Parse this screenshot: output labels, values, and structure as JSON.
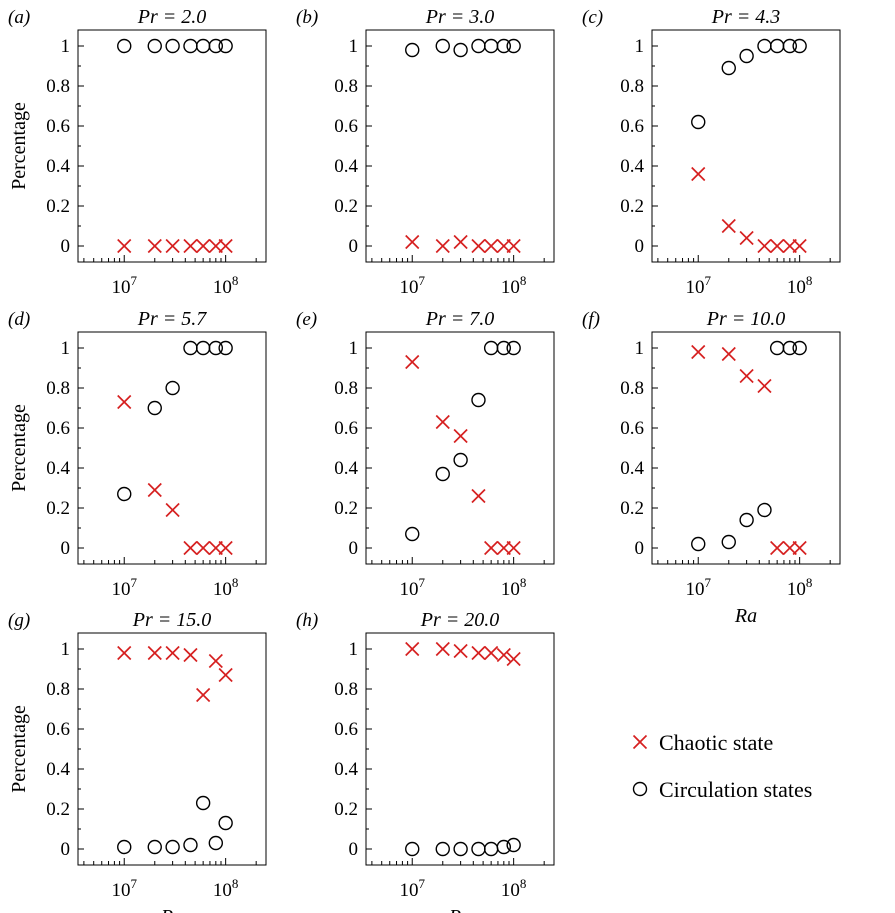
{
  "legend": {
    "entries": [
      {
        "label": "Chaotic state",
        "marker": "x",
        "color": "#d62020"
      },
      {
        "label": "Circulation states",
        "marker": "o",
        "color": "#000000"
      }
    ]
  },
  "chart_data": [
    {
      "type": "scatter",
      "letter": "(a)",
      "title": "Pr = 2.0",
      "ylabel": "Percentage",
      "xlabel": "",
      "xscale": "log",
      "xlim": [
        3500000,
        250000000
      ],
      "ylim": [
        -0.08,
        1.08
      ],
      "yticks": [
        0,
        0.2,
        0.4,
        0.6,
        0.8,
        1
      ],
      "ytick_labels": [
        "0",
        "0.2",
        "0.4",
        "0.6",
        "0.8",
        "1"
      ],
      "xticks": [
        10000000,
        100000000
      ],
      "xtick_labels": [
        "10^7",
        "10^8"
      ],
      "series": [
        {
          "name": "Chaotic state",
          "marker": "x",
          "color": "#d62020",
          "x": [
            10000000,
            20000000,
            30000000,
            45000000,
            60000000,
            80000000,
            100000000
          ],
          "y": [
            0,
            0,
            0,
            0,
            0,
            0,
            0
          ]
        },
        {
          "name": "Circulation states",
          "marker": "o",
          "color": "#000000",
          "x": [
            10000000,
            20000000,
            30000000,
            45000000,
            60000000,
            80000000,
            100000000
          ],
          "y": [
            1,
            1,
            1,
            1,
            1,
            1,
            1
          ]
        }
      ]
    },
    {
      "type": "scatter",
      "letter": "(b)",
      "title": "Pr = 3.0",
      "ylabel": "",
      "xlabel": "",
      "xscale": "log",
      "xlim": [
        3500000,
        250000000
      ],
      "ylim": [
        -0.08,
        1.08
      ],
      "yticks": [
        0,
        0.2,
        0.4,
        0.6,
        0.8,
        1
      ],
      "ytick_labels": [
        "0",
        "0.2",
        "0.4",
        "0.6",
        "0.8",
        "1"
      ],
      "xticks": [
        10000000,
        100000000
      ],
      "xtick_labels": [
        "10^7",
        "10^8"
      ],
      "series": [
        {
          "name": "Chaotic state",
          "marker": "x",
          "color": "#d62020",
          "x": [
            10000000,
            20000000,
            30000000,
            45000000,
            60000000,
            80000000,
            100000000
          ],
          "y": [
            0.02,
            0,
            0.02,
            0,
            0,
            0,
            0
          ]
        },
        {
          "name": "Circulation states",
          "marker": "o",
          "color": "#000000",
          "x": [
            10000000,
            20000000,
            30000000,
            45000000,
            60000000,
            80000000,
            100000000
          ],
          "y": [
            0.98,
            1,
            0.98,
            1,
            1,
            1,
            1
          ]
        }
      ]
    },
    {
      "type": "scatter",
      "letter": "(c)",
      "title": "Pr = 4.3",
      "ylabel": "",
      "xlabel": "",
      "xscale": "log",
      "xlim": [
        3500000,
        250000000
      ],
      "ylim": [
        -0.08,
        1.08
      ],
      "yticks": [
        0,
        0.2,
        0.4,
        0.6,
        0.8,
        1
      ],
      "ytick_labels": [
        "0",
        "0.2",
        "0.4",
        "0.6",
        "0.8",
        "1"
      ],
      "xticks": [
        10000000,
        100000000
      ],
      "xtick_labels": [
        "10^7",
        "10^8"
      ],
      "series": [
        {
          "name": "Chaotic state",
          "marker": "x",
          "color": "#d62020",
          "x": [
            10000000,
            20000000,
            30000000,
            45000000,
            60000000,
            80000000,
            100000000
          ],
          "y": [
            0.36,
            0.1,
            0.04,
            0,
            0,
            0,
            0
          ]
        },
        {
          "name": "Circulation states",
          "marker": "o",
          "color": "#000000",
          "x": [
            10000000,
            20000000,
            30000000,
            45000000,
            60000000,
            80000000,
            100000000
          ],
          "y": [
            0.62,
            0.89,
            0.95,
            1,
            1,
            1,
            1
          ]
        }
      ]
    },
    {
      "type": "scatter",
      "letter": "(d)",
      "title": "Pr = 5.7",
      "ylabel": "Percentage",
      "xlabel": "",
      "xscale": "log",
      "xlim": [
        3500000,
        250000000
      ],
      "ylim": [
        -0.08,
        1.08
      ],
      "yticks": [
        0,
        0.2,
        0.4,
        0.6,
        0.8,
        1
      ],
      "ytick_labels": [
        "0",
        "0.2",
        "0.4",
        "0.6",
        "0.8",
        "1"
      ],
      "xticks": [
        10000000,
        100000000
      ],
      "xtick_labels": [
        "10^7",
        "10^8"
      ],
      "series": [
        {
          "name": "Chaotic state",
          "marker": "x",
          "color": "#d62020",
          "x": [
            10000000,
            20000000,
            30000000,
            45000000,
            60000000,
            80000000,
            100000000
          ],
          "y": [
            0.73,
            0.29,
            0.19,
            0,
            0,
            0,
            0
          ]
        },
        {
          "name": "Circulation states",
          "marker": "o",
          "color": "#000000",
          "x": [
            10000000,
            20000000,
            30000000,
            45000000,
            60000000,
            80000000,
            100000000
          ],
          "y": [
            0.27,
            0.7,
            0.8,
            1,
            1,
            1,
            1
          ]
        }
      ]
    },
    {
      "type": "scatter",
      "letter": "(e)",
      "title": "Pr = 7.0",
      "ylabel": "",
      "xlabel": "",
      "xscale": "log",
      "xlim": [
        3500000,
        250000000
      ],
      "ylim": [
        -0.08,
        1.08
      ],
      "yticks": [
        0,
        0.2,
        0.4,
        0.6,
        0.8,
        1
      ],
      "ytick_labels": [
        "0",
        "0.2",
        "0.4",
        "0.6",
        "0.8",
        "1"
      ],
      "xticks": [
        10000000,
        100000000
      ],
      "xtick_labels": [
        "10^7",
        "10^8"
      ],
      "series": [
        {
          "name": "Chaotic state",
          "marker": "x",
          "color": "#d62020",
          "x": [
            10000000,
            20000000,
            30000000,
            45000000,
            60000000,
            80000000,
            100000000
          ],
          "y": [
            0.93,
            0.63,
            0.56,
            0.26,
            0,
            0,
            0
          ]
        },
        {
          "name": "Circulation states",
          "marker": "o",
          "color": "#000000",
          "x": [
            10000000,
            20000000,
            30000000,
            45000000,
            60000000,
            80000000,
            100000000
          ],
          "y": [
            0.07,
            0.37,
            0.44,
            0.74,
            1,
            1,
            1
          ]
        }
      ]
    },
    {
      "type": "scatter",
      "letter": "(f)",
      "title": "Pr = 10.0",
      "ylabel": "",
      "xlabel": "Ra",
      "xscale": "log",
      "xlim": [
        3500000,
        250000000
      ],
      "ylim": [
        -0.08,
        1.08
      ],
      "yticks": [
        0,
        0.2,
        0.4,
        0.6,
        0.8,
        1
      ],
      "ytick_labels": [
        "0",
        "0.2",
        "0.4",
        "0.6",
        "0.8",
        "1"
      ],
      "xticks": [
        10000000,
        100000000
      ],
      "xtick_labels": [
        "10^7",
        "10^8"
      ],
      "series": [
        {
          "name": "Chaotic state",
          "marker": "x",
          "color": "#d62020",
          "x": [
            10000000,
            20000000,
            30000000,
            45000000,
            60000000,
            80000000,
            100000000
          ],
          "y": [
            0.98,
            0.97,
            0.86,
            0.81,
            0,
            0,
            0
          ]
        },
        {
          "name": "Circulation states",
          "marker": "o",
          "color": "#000000",
          "x": [
            10000000,
            20000000,
            30000000,
            45000000,
            60000000,
            80000000,
            100000000
          ],
          "y": [
            0.02,
            0.03,
            0.14,
            0.19,
            1,
            1,
            1
          ]
        }
      ]
    },
    {
      "type": "scatter",
      "letter": "(g)",
      "title": "Pr = 15.0",
      "ylabel": "Percentage",
      "xlabel": "Ra",
      "xscale": "log",
      "xlim": [
        3500000,
        250000000
      ],
      "ylim": [
        -0.08,
        1.08
      ],
      "yticks": [
        0,
        0.2,
        0.4,
        0.6,
        0.8,
        1
      ],
      "ytick_labels": [
        "0",
        "0.2",
        "0.4",
        "0.6",
        "0.8",
        "1"
      ],
      "xticks": [
        10000000,
        100000000
      ],
      "xtick_labels": [
        "10^7",
        "10^8"
      ],
      "series": [
        {
          "name": "Chaotic state",
          "marker": "x",
          "color": "#d62020",
          "x": [
            10000000,
            20000000,
            30000000,
            45000000,
            60000000,
            80000000,
            100000000
          ],
          "y": [
            0.98,
            0.98,
            0.98,
            0.97,
            0.77,
            0.94,
            0.87
          ]
        },
        {
          "name": "Circulation states",
          "marker": "o",
          "color": "#000000",
          "x": [
            10000000,
            20000000,
            30000000,
            45000000,
            60000000,
            80000000,
            100000000
          ],
          "y": [
            0.01,
            0.01,
            0.01,
            0.02,
            0.23,
            0.03,
            0.13
          ]
        }
      ]
    },
    {
      "type": "scatter",
      "letter": "(h)",
      "title": "Pr = 20.0",
      "ylabel": "",
      "xlabel": "Ra",
      "xscale": "log",
      "xlim": [
        3500000,
        250000000
      ],
      "ylim": [
        -0.08,
        1.08
      ],
      "yticks": [
        0,
        0.2,
        0.4,
        0.6,
        0.8,
        1
      ],
      "ytick_labels": [
        "0",
        "0.2",
        "0.4",
        "0.6",
        "0.8",
        "1"
      ],
      "xticks": [
        10000000,
        100000000
      ],
      "xtick_labels": [
        "10^7",
        "10^8"
      ],
      "series": [
        {
          "name": "Chaotic state",
          "marker": "x",
          "color": "#d62020",
          "x": [
            10000000,
            20000000,
            30000000,
            45000000,
            60000000,
            80000000,
            100000000
          ],
          "y": [
            1,
            1,
            0.99,
            0.98,
            0.98,
            0.97,
            0.95
          ]
        },
        {
          "name": "Circulation states",
          "marker": "o",
          "color": "#000000",
          "x": [
            10000000,
            20000000,
            30000000,
            45000000,
            60000000,
            80000000,
            100000000
          ],
          "y": [
            0,
            0,
            0,
            0,
            0,
            0.01,
            0.02
          ]
        }
      ]
    }
  ]
}
